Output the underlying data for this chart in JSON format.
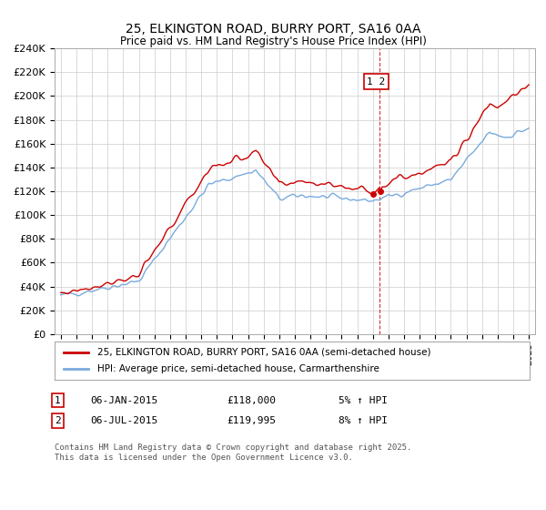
{
  "title": "25, ELKINGTON ROAD, BURRY PORT, SA16 0AA",
  "subtitle": "Price paid vs. HM Land Registry's House Price Index (HPI)",
  "ylim": [
    0,
    240000
  ],
  "yticks": [
    0,
    20000,
    40000,
    60000,
    80000,
    100000,
    120000,
    140000,
    160000,
    180000,
    200000,
    220000,
    240000
  ],
  "ytick_labels": [
    "£0",
    "£20K",
    "£40K",
    "£60K",
    "£80K",
    "£100K",
    "£120K",
    "£140K",
    "£160K",
    "£180K",
    "£200K",
    "£220K",
    "£240K"
  ],
  "line1_color": "#cc0000",
  "line2_color": "#7aaadd",
  "legend1": "25, ELKINGTON ROAD, BURRY PORT, SA16 0AA (semi-detached house)",
  "legend2": "HPI: Average price, semi-detached house, Carmarthenshire",
  "vline_x": 2015.4,
  "background_color": "#ffffff",
  "grid_color": "#cccccc",
  "sale1_date": "06-JAN-2015",
  "sale1_price": "£118,000",
  "sale1_hpi": "5% ↑ HPI",
  "sale2_date": "06-JUL-2015",
  "sale2_price": "£119,995",
  "sale2_hpi": "8% ↑ HPI",
  "footer": "Contains HM Land Registry data © Crown copyright and database right 2025.\nThis data is licensed under the Open Government Licence v3.0.",
  "hpi_years": [
    1995.0,
    1995.083,
    1995.167,
    1995.25,
    1995.333,
    1995.417,
    1995.5,
    1995.583,
    1995.667,
    1995.75,
    1995.833,
    1995.917,
    1996.0,
    1996.083,
    1996.167,
    1996.25,
    1996.333,
    1996.417,
    1996.5,
    1996.583,
    1996.667,
    1996.75,
    1996.833,
    1996.917,
    1997.0,
    1997.083,
    1997.167,
    1997.25,
    1997.333,
    1997.417,
    1997.5,
    1997.583,
    1997.667,
    1997.75,
    1997.833,
    1997.917,
    1998.0,
    1998.083,
    1998.167,
    1998.25,
    1998.333,
    1998.417,
    1998.5,
    1998.583,
    1998.667,
    1998.75,
    1998.833,
    1998.917,
    1999.0,
    1999.083,
    1999.167,
    1999.25,
    1999.333,
    1999.417,
    1999.5,
    1999.583,
    1999.667,
    1999.75,
    1999.833,
    1999.917,
    2000.0,
    2000.083,
    2000.167,
    2000.25,
    2000.333,
    2000.417,
    2000.5,
    2000.583,
    2000.667,
    2000.75,
    2000.833,
    2000.917,
    2001.0,
    2001.083,
    2001.167,
    2001.25,
    2001.333,
    2001.417,
    2001.5,
    2001.583,
    2001.667,
    2001.75,
    2001.833,
    2001.917,
    2002.0,
    2002.083,
    2002.167,
    2002.25,
    2002.333,
    2002.417,
    2002.5,
    2002.583,
    2002.667,
    2002.75,
    2002.833,
    2002.917,
    2003.0,
    2003.083,
    2003.167,
    2003.25,
    2003.333,
    2003.417,
    2003.5,
    2003.583,
    2003.667,
    2003.75,
    2003.833,
    2003.917,
    2004.0,
    2004.083,
    2004.167,
    2004.25,
    2004.333,
    2004.417,
    2004.5,
    2004.583,
    2004.667,
    2004.75,
    2004.833,
    2004.917,
    2005.0,
    2005.083,
    2005.167,
    2005.25,
    2005.333,
    2005.417,
    2005.5,
    2005.583,
    2005.667,
    2005.75,
    2005.833,
    2005.917,
    2006.0,
    2006.083,
    2006.167,
    2006.25,
    2006.333,
    2006.417,
    2006.5,
    2006.583,
    2006.667,
    2006.75,
    2006.833,
    2006.917,
    2007.0,
    2007.083,
    2007.167,
    2007.25,
    2007.333,
    2007.417,
    2007.5,
    2007.583,
    2007.667,
    2007.75,
    2007.833,
    2007.917,
    2008.0,
    2008.083,
    2008.167,
    2008.25,
    2008.333,
    2008.417,
    2008.5,
    2008.583,
    2008.667,
    2008.75,
    2008.833,
    2008.917,
    2009.0,
    2009.083,
    2009.167,
    2009.25,
    2009.333,
    2009.417,
    2009.5,
    2009.583,
    2009.667,
    2009.75,
    2009.833,
    2009.917,
    2010.0,
    2010.083,
    2010.167,
    2010.25,
    2010.333,
    2010.417,
    2010.5,
    2010.583,
    2010.667,
    2010.75,
    2010.833,
    2010.917,
    2011.0,
    2011.083,
    2011.167,
    2011.25,
    2011.333,
    2011.417,
    2011.5,
    2011.583,
    2011.667,
    2011.75,
    2011.833,
    2011.917,
    2012.0,
    2012.083,
    2012.167,
    2012.25,
    2012.333,
    2012.417,
    2012.5,
    2012.583,
    2012.667,
    2012.75,
    2012.833,
    2012.917,
    2013.0,
    2013.083,
    2013.167,
    2013.25,
    2013.333,
    2013.417,
    2013.5,
    2013.583,
    2013.667,
    2013.75,
    2013.833,
    2013.917,
    2014.0,
    2014.083,
    2014.167,
    2014.25,
    2014.333,
    2014.417,
    2014.5,
    2014.583,
    2014.667,
    2014.75,
    2014.833,
    2014.917,
    2015.0,
    2015.083,
    2015.167,
    2015.25,
    2015.333,
    2015.417,
    2015.5,
    2015.583,
    2015.667,
    2015.75,
    2015.833,
    2015.917,
    2016.0,
    2016.083,
    2016.167,
    2016.25,
    2016.333,
    2016.417,
    2016.5,
    2016.583,
    2016.667,
    2016.75,
    2016.833,
    2016.917,
    2017.0,
    2017.083,
    2017.167,
    2017.25,
    2017.333,
    2017.417,
    2017.5,
    2017.583,
    2017.667,
    2017.75,
    2017.833,
    2017.917,
    2018.0,
    2018.083,
    2018.167,
    2018.25,
    2018.333,
    2018.417,
    2018.5,
    2018.583,
    2018.667,
    2018.75,
    2018.833,
    2018.917,
    2019.0,
    2019.083,
    2019.167,
    2019.25,
    2019.333,
    2019.417,
    2019.5,
    2019.583,
    2019.667,
    2019.75,
    2019.833,
    2019.917,
    2020.0,
    2020.083,
    2020.167,
    2020.25,
    2020.333,
    2020.417,
    2020.5,
    2020.583,
    2020.667,
    2020.75,
    2020.833,
    2020.917,
    2021.0,
    2021.083,
    2021.167,
    2021.25,
    2021.333,
    2021.417,
    2021.5,
    2021.583,
    2021.667,
    2021.75,
    2021.833,
    2021.917,
    2022.0,
    2022.083,
    2022.167,
    2022.25,
    2022.333,
    2022.417,
    2022.5,
    2022.583,
    2022.667,
    2022.75,
    2022.833,
    2022.917,
    2023.0,
    2023.083,
    2023.167,
    2023.25,
    2023.333,
    2023.417,
    2023.5,
    2023.583,
    2023.667,
    2023.75,
    2023.833,
    2023.917,
    2024.0,
    2024.083,
    2024.167,
    2024.25,
    2024.333,
    2024.417,
    2024.5,
    2024.583,
    2024.667,
    2024.75,
    2024.833,
    2024.917,
    2025.0
  ]
}
